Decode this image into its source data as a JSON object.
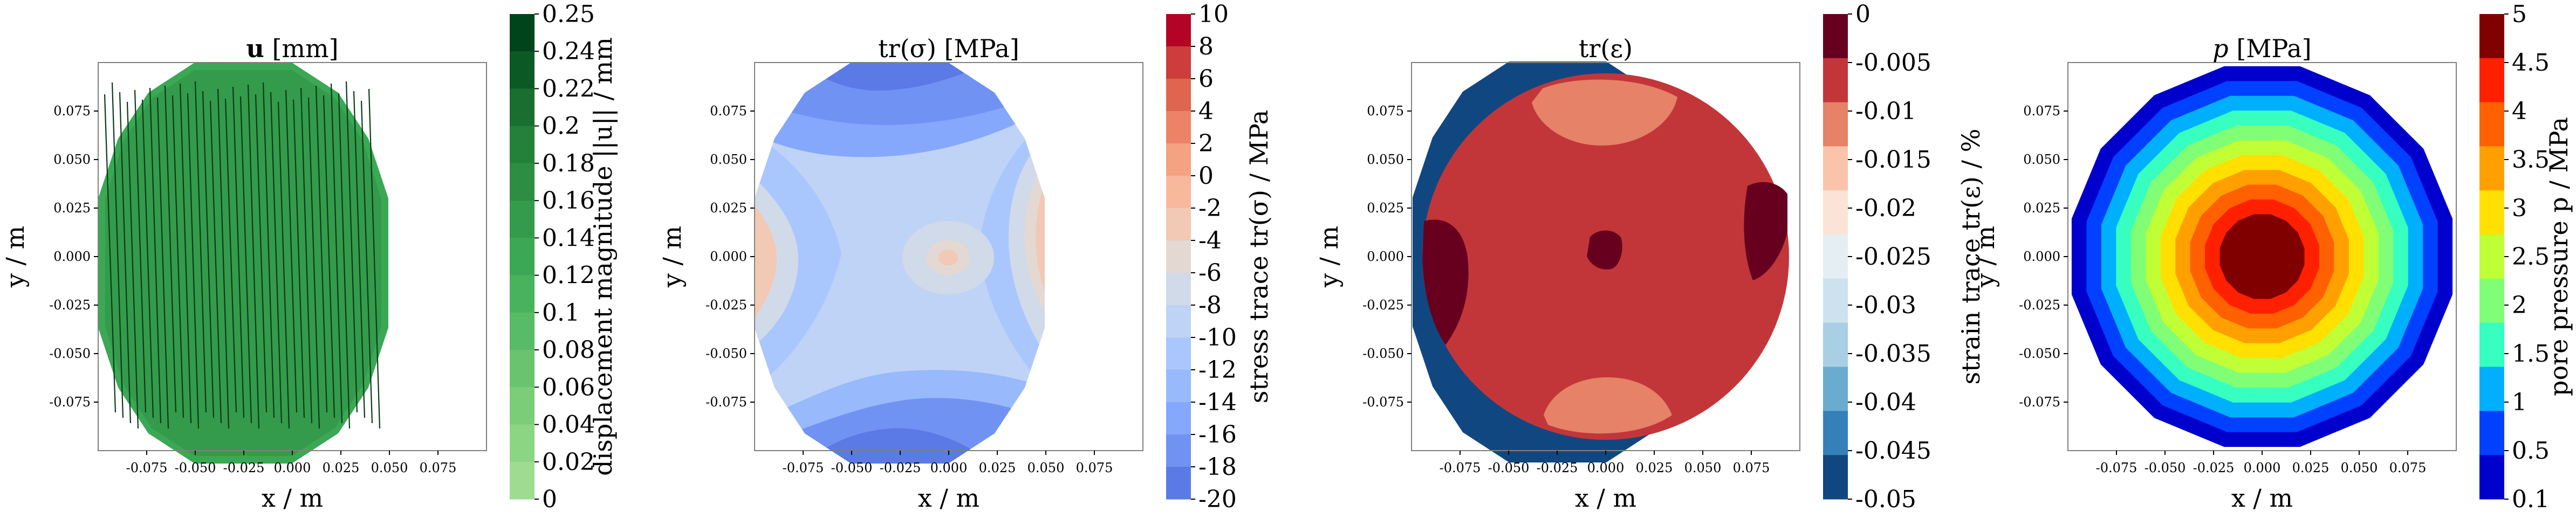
{
  "chart_data": [
    {
      "type": "contour",
      "title_bold": "u",
      "title_rest": " [mm]",
      "xlabel": "x / m",
      "ylabel": "y / m",
      "xlim": [
        -0.1,
        0.1
      ],
      "ylim": [
        -0.1,
        0.1
      ],
      "xticks": [
        "-0.075",
        "-0.050",
        "-0.025",
        "0.000",
        "0.025",
        "0.050",
        "0.075"
      ],
      "yticks": [
        "0.075",
        "0.050",
        "0.025",
        "0.000",
        "-0.025",
        "-0.050",
        "-0.075"
      ],
      "colorbar": {
        "label": "displacement magnitude ||u|| / mm",
        "ticks": [
          "0.25",
          "0.24",
          "0.22",
          "0.2",
          "0.18",
          "0.16",
          "0.14",
          "0.12",
          "0.1",
          "0.08",
          "0.06",
          "0.04",
          "0.02",
          "0"
        ],
        "colors": [
          "#00441b",
          "#0b5a26",
          "#196e30",
          "#23813a",
          "#2c8d43",
          "#339b4b",
          "#3aa854",
          "#48b35d",
          "#58bb66",
          "#6ac46f",
          "#7bcd78",
          "#8cd583",
          "#9edd91"
        ]
      }
    },
    {
      "type": "contour",
      "title": "tr(σ) [MPa]",
      "xlabel": "x / m",
      "ylabel": "y / m",
      "xlim": [
        -0.1,
        0.1
      ],
      "ylim": [
        -0.1,
        0.1
      ],
      "xticks": [
        "-0.075",
        "-0.050",
        "-0.025",
        "0.000",
        "0.025",
        "0.050",
        "0.075"
      ],
      "yticks": [
        "0.075",
        "0.050",
        "0.025",
        "0.000",
        "-0.025",
        "-0.050",
        "-0.075"
      ],
      "colorbar": {
        "label": "stress trace tr(σ) / MPa",
        "ticks": [
          "10",
          "8",
          "6",
          "4",
          "2",
          "0",
          "-2",
          "-4",
          "-6",
          "-8",
          "-10",
          "-12",
          "-14",
          "-16",
          "-18",
          "-20"
        ],
        "colors": [
          "#b40426",
          "#cc3d3b",
          "#e0654f",
          "#ed8366",
          "#f4a282",
          "#f7b89c",
          "#f2c9b4",
          "#e4d9d2",
          "#d1dae9",
          "#bfd3f6",
          "#aac7fd",
          "#98b9fc",
          "#85a8fc",
          "#7093f3",
          "#5b7ae5"
        ]
      }
    },
    {
      "type": "contour",
      "title": "tr(ε)",
      "xlabel": "x / m",
      "ylabel": "y / m",
      "xlim": [
        -0.1,
        0.1
      ],
      "ylim": [
        -0.1,
        0.1
      ],
      "xticks": [
        "-0.075",
        "-0.050",
        "-0.025",
        "0.000",
        "0.025",
        "0.050",
        "0.075"
      ],
      "yticks": [
        "0.075",
        "0.050",
        "0.025",
        "0.000",
        "-0.025",
        "-0.050",
        "-0.075"
      ],
      "colorbar": {
        "label": "strain trace tr(ε) / %",
        "ticks": [
          "0",
          "-0.005",
          "-0.01",
          "-0.015",
          "-0.02",
          "-0.025",
          "-0.03",
          "-0.035",
          "-0.04",
          "-0.045",
          "-0.05"
        ],
        "colors": [
          "#67001f",
          "#c23639",
          "#e58267",
          "#f9c4a9",
          "#fbe3d5",
          "#e5eef3",
          "#cce2ee",
          "#a8cfe4",
          "#6aaccf",
          "#3580b9",
          "#114781"
        ]
      }
    },
    {
      "type": "contour",
      "title_italic": "p",
      "title_rest": " [MPa]",
      "xlabel": "x / m",
      "ylabel": "y / m",
      "xlim": [
        -0.1,
        0.1
      ],
      "ylim": [
        -0.1,
        0.1
      ],
      "xticks": [
        "-0.075",
        "-0.050",
        "-0.025",
        "0.000",
        "0.025",
        "0.050",
        "0.075"
      ],
      "yticks": [
        "0.075",
        "0.050",
        "0.025",
        "0.000",
        "-0.025",
        "-0.050",
        "-0.075"
      ],
      "colorbar": {
        "label": "pore pressure p / MPa",
        "ticks": [
          "5",
          "4.5",
          "4",
          "3.5",
          "3",
          "2.5",
          "2",
          "1.5",
          "1",
          "0.5",
          "0.1"
        ],
        "colors": [
          "#800000",
          "#ff2000",
          "#ff6000",
          "#ffa000",
          "#ffe000",
          "#c0ff36",
          "#80ff76",
          "#36ffc0",
          "#00b0ff",
          "#0040ff",
          "#0000cd"
        ]
      }
    }
  ]
}
